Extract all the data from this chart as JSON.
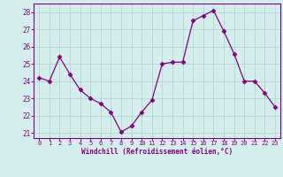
{
  "x": [
    0,
    1,
    2,
    3,
    4,
    5,
    6,
    7,
    8,
    9,
    10,
    11,
    12,
    13,
    14,
    15,
    16,
    17,
    18,
    19,
    20,
    21,
    22,
    23
  ],
  "y": [
    24.2,
    24.0,
    25.4,
    24.4,
    23.5,
    23.0,
    22.7,
    22.2,
    21.05,
    21.4,
    22.2,
    22.9,
    25.0,
    25.1,
    25.1,
    27.5,
    27.8,
    28.1,
    26.9,
    25.6,
    24.0,
    24.0,
    23.3,
    22.5
  ],
  "line_color": "#800080",
  "marker": "D",
  "marker_size": 2.5,
  "bg_color": "#d4eeed",
  "grid_color": "#b8d8d6",
  "xlabel": "Windchill (Refroidissement éolien,°C)",
  "xlabel_color": "#800080",
  "tick_color": "#800080",
  "spine_color": "#800080",
  "ylim": [
    20.7,
    28.5
  ],
  "yticks": [
    21,
    22,
    23,
    24,
    25,
    26,
    27,
    28
  ],
  "xlim": [
    -0.5,
    23.5
  ],
  "xticks": [
    0,
    1,
    2,
    3,
    4,
    5,
    6,
    7,
    8,
    9,
    10,
    11,
    12,
    13,
    14,
    15,
    16,
    17,
    18,
    19,
    20,
    21,
    22,
    23
  ]
}
